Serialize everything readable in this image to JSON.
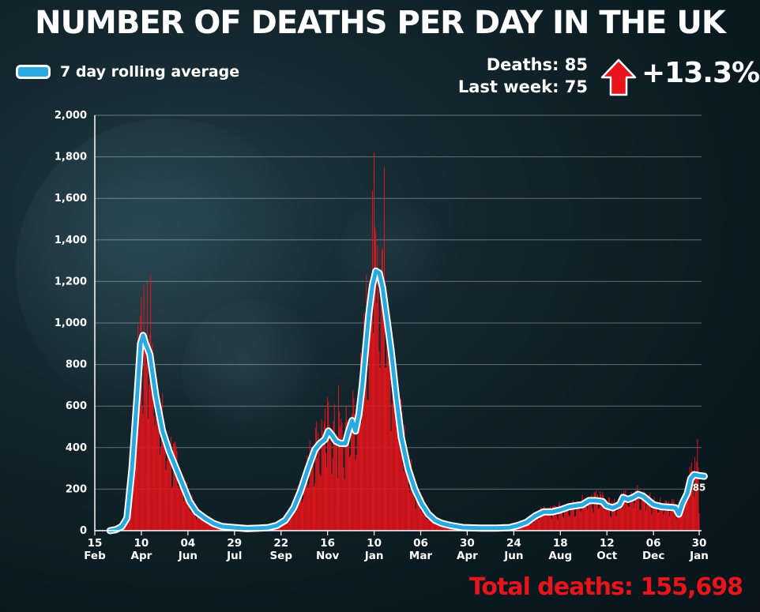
{
  "header": {
    "title": "NUMBER OF DEATHS PER DAY IN THE UK",
    "legend_label": "7 day rolling average",
    "deaths_label": "Deaths: 85",
    "last_week_label": "Last week: 75",
    "change": "+13.3%",
    "total": "Total deaths: 155,698"
  },
  "colors": {
    "bar": "#e8141b",
    "line": "#29a9e0",
    "line_outline": "#ffffff",
    "arrow": "#e8141b"
  },
  "chart_data": {
    "type": "bar",
    "title": "NUMBER OF DEATHS PER DAY IN THE UK",
    "ylabel": "",
    "xlabel": "",
    "ylim": [
      0,
      2000
    ],
    "yticks": [
      0,
      200,
      400,
      600,
      800,
      1000,
      1200,
      1400,
      1600,
      1800,
      2000
    ],
    "ytick_labels": [
      "0",
      "200",
      "400",
      "600",
      "800",
      "1,000",
      "1,200",
      "1,400",
      "1,600",
      "1,800",
      "2,000"
    ],
    "xlim_days": [
      0,
      714
    ],
    "xticks": [
      {
        "day": 0,
        "day_label": "15",
        "month_label": "Feb"
      },
      {
        "day": 55,
        "day_label": "10",
        "month_label": "Apr"
      },
      {
        "day": 110,
        "day_label": "04",
        "month_label": "Jun"
      },
      {
        "day": 165,
        "day_label": "29",
        "month_label": "Jul"
      },
      {
        "day": 220,
        "day_label": "22",
        "month_label": "Sep"
      },
      {
        "day": 275,
        "day_label": "16",
        "month_label": "Nov"
      },
      {
        "day": 330,
        "day_label": "10",
        "month_label": "Jan"
      },
      {
        "day": 385,
        "day_label": "06",
        "month_label": "Mar"
      },
      {
        "day": 440,
        "day_label": "30",
        "month_label": "Apr"
      },
      {
        "day": 495,
        "day_label": "24",
        "month_label": "Jun"
      },
      {
        "day": 550,
        "day_label": "18",
        "month_label": "Aug"
      },
      {
        "day": 605,
        "day_label": "12",
        "month_label": "Oct"
      },
      {
        "day": 660,
        "day_label": "06",
        "month_label": "Dec"
      },
      {
        "day": 714,
        "day_label": "30",
        "month_label": "Jan"
      }
    ],
    "rolling_average": {
      "name": "7 day rolling average",
      "points": [
        [
          18,
          0
        ],
        [
          25,
          5
        ],
        [
          32,
          20
        ],
        [
          38,
          60
        ],
        [
          44,
          300
        ],
        [
          50,
          650
        ],
        [
          54,
          900
        ],
        [
          57,
          940
        ],
        [
          60,
          900
        ],
        [
          65,
          850
        ],
        [
          72,
          650
        ],
        [
          80,
          480
        ],
        [
          88,
          380
        ],
        [
          96,
          300
        ],
        [
          104,
          220
        ],
        [
          112,
          140
        ],
        [
          120,
          90
        ],
        [
          130,
          60
        ],
        [
          140,
          35
        ],
        [
          150,
          20
        ],
        [
          165,
          15
        ],
        [
          180,
          10
        ],
        [
          195,
          12
        ],
        [
          205,
          15
        ],
        [
          215,
          25
        ],
        [
          225,
          50
        ],
        [
          235,
          110
        ],
        [
          243,
          190
        ],
        [
          252,
          300
        ],
        [
          260,
          390
        ],
        [
          266,
          420
        ],
        [
          272,
          440
        ],
        [
          276,
          480
        ],
        [
          280,
          460
        ],
        [
          285,
          430
        ],
        [
          290,
          420
        ],
        [
          296,
          420
        ],
        [
          300,
          480
        ],
        [
          304,
          530
        ],
        [
          308,
          480
        ],
        [
          312,
          560
        ],
        [
          316,
          700
        ],
        [
          320,
          880
        ],
        [
          324,
          1050
        ],
        [
          328,
          1180
        ],
        [
          332,
          1250
        ],
        [
          336,
          1240
        ],
        [
          340,
          1170
        ],
        [
          344,
          1050
        ],
        [
          350,
          870
        ],
        [
          356,
          650
        ],
        [
          362,
          450
        ],
        [
          370,
          300
        ],
        [
          378,
          200
        ],
        [
          386,
          130
        ],
        [
          394,
          80
        ],
        [
          402,
          50
        ],
        [
          410,
          35
        ],
        [
          420,
          25
        ],
        [
          435,
          15
        ],
        [
          455,
          12
        ],
        [
          475,
          12
        ],
        [
          490,
          15
        ],
        [
          500,
          25
        ],
        [
          510,
          40
        ],
        [
          520,
          70
        ],
        [
          530,
          90
        ],
        [
          540,
          90
        ],
        [
          550,
          100
        ],
        [
          560,
          115
        ],
        [
          568,
          120
        ],
        [
          576,
          125
        ],
        [
          584,
          145
        ],
        [
          592,
          145
        ],
        [
          600,
          140
        ],
        [
          604,
          120
        ],
        [
          612,
          110
        ],
        [
          620,
          125
        ],
        [
          624,
          160
        ],
        [
          630,
          150
        ],
        [
          636,
          160
        ],
        [
          642,
          175
        ],
        [
          648,
          165
        ],
        [
          654,
          145
        ],
        [
          660,
          125
        ],
        [
          670,
          115
        ],
        [
          680,
          112
        ],
        [
          686,
          110
        ],
        [
          690,
          80
        ],
        [
          694,
          130
        ],
        [
          700,
          180
        ],
        [
          704,
          250
        ],
        [
          708,
          270
        ],
        [
          714,
          265
        ],
        [
          720,
          262
        ]
      ]
    },
    "daily_deaths_peaks": [
      {
        "day": 55,
        "value": 1120
      },
      {
        "day": 66,
        "value": 1230
      },
      {
        "day": 288,
        "value": 700
      },
      {
        "day": 330,
        "value": 1820
      },
      {
        "day": 342,
        "value": 1750
      },
      {
        "day": 712,
        "value": 440
      }
    ],
    "latest_value": 85,
    "latest_label": "85"
  }
}
